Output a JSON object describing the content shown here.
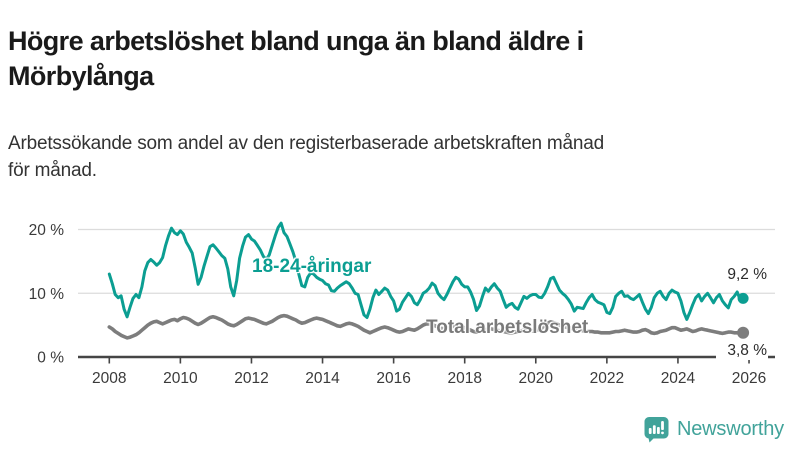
{
  "header": {
    "title_lines": [
      "Högre arbetslöshet bland unga än bland äldre i",
      "Mörbylånga"
    ],
    "subtitle_lines": [
      "Arbetssökande som andel av den registerbaserade arbetskraften månad",
      "för månad."
    ]
  },
  "footer": {
    "brand": "Newsworthy"
  },
  "colors": {
    "accent_teal": "#0B9E92",
    "line_gray": "#7d7d7d",
    "label_gray": "#7a7a7a",
    "gridline": "#dcdcdc",
    "axis": "#454545",
    "tick_text": "#3a3a3a",
    "title_text": "#1a1a1a",
    "subtitle_text": "#333333",
    "logo_teal": "#41a39a"
  },
  "chart_data": {
    "type": "line",
    "title": "Högre arbetslöshet bland unga än bland äldre i Mörbylånga",
    "subtitle": "Arbetssökande som andel av den registerbaserade arbetskraften månad för månad.",
    "xlabel": "",
    "ylabel": "",
    "unit": "%",
    "frequency": "monthly",
    "x_start_year": 2008,
    "x_end": "2025-11",
    "ylim": [
      0,
      22
    ],
    "grid": "horizontal",
    "legend_position": "inline-labels",
    "yticks": [
      {
        "value": 0,
        "label": "0 %"
      },
      {
        "value": 10,
        "label": "10 %"
      },
      {
        "value": 20,
        "label": "20 %"
      }
    ],
    "xticks": [
      {
        "value": 2008,
        "label": "2008"
      },
      {
        "value": 2010,
        "label": "2010"
      },
      {
        "value": 2012,
        "label": "2012"
      },
      {
        "value": 2014,
        "label": "2014"
      },
      {
        "value": 2016,
        "label": "2016"
      },
      {
        "value": 2018,
        "label": "2018"
      },
      {
        "value": 2020,
        "label": "2020"
      },
      {
        "value": 2022,
        "label": "2022"
      },
      {
        "value": 2024,
        "label": "2024"
      },
      {
        "value": 2026,
        "label": "2026"
      }
    ],
    "series": [
      {
        "name": "18-24-åringar",
        "color": "#0B9E92",
        "end_label": "9,2 %",
        "end_value": 9.2,
        "values": [
          13.0,
          11.5,
          9.8,
          9.3,
          9.6,
          7.5,
          6.3,
          7.8,
          9.2,
          9.8,
          9.3,
          11.0,
          13.5,
          14.8,
          15.3,
          14.9,
          14.4,
          14.8,
          15.6,
          17.5,
          19.0,
          20.2,
          19.5,
          19.2,
          19.8,
          19.3,
          18.0,
          17.2,
          16.3,
          14.0,
          11.4,
          12.5,
          14.3,
          15.8,
          17.3,
          17.6,
          17.1,
          16.5,
          15.9,
          15.5,
          13.8,
          11.0,
          9.6,
          12.0,
          15.5,
          17.4,
          18.8,
          19.2,
          18.5,
          18.2,
          17.5,
          16.8,
          15.8,
          15.3,
          16.0,
          17.5,
          19.0,
          20.3,
          21.0,
          19.5,
          18.9,
          17.7,
          16.5,
          15.0,
          13.0,
          11.2,
          11.0,
          12.5,
          13.2,
          13.0,
          12.5,
          12.2,
          12.0,
          11.5,
          11.3,
          10.4,
          10.3,
          10.8,
          11.2,
          11.5,
          11.8,
          11.5,
          10.8,
          10.0,
          9.8,
          8.2,
          6.6,
          6.2,
          7.5,
          9.3,
          10.5,
          9.8,
          10.3,
          10.8,
          10.5,
          9.5,
          8.8,
          7.2,
          7.5,
          8.6,
          9.3,
          10.0,
          9.5,
          8.5,
          8.2,
          9.0,
          10.0,
          10.3,
          10.8,
          11.6,
          11.2,
          10.0,
          9.4,
          9.0,
          9.8,
          10.8,
          11.8,
          12.5,
          12.2,
          11.4,
          11.0,
          11.0,
          10.2,
          9.0,
          7.3,
          8.0,
          9.5,
          10.8,
          10.3,
          11.0,
          11.5,
          10.8,
          10.3,
          9.0,
          7.8,
          8.2,
          8.4,
          7.8,
          7.5,
          8.5,
          9.5,
          9.2,
          9.6,
          9.8,
          9.8,
          9.4,
          9.3,
          10.0,
          11.0,
          12.3,
          12.5,
          11.5,
          10.5,
          10.0,
          9.6,
          9.0,
          8.3,
          7.2,
          7.8,
          7.7,
          7.6,
          8.5,
          9.3,
          9.8,
          9.0,
          8.6,
          8.4,
          8.2,
          7.0,
          6.8,
          7.8,
          9.5,
          10.0,
          10.3,
          9.5,
          9.6,
          9.2,
          9.0,
          9.4,
          9.8,
          8.6,
          7.5,
          6.8,
          7.8,
          9.3,
          10.0,
          10.3,
          9.5,
          9.0,
          10.0,
          10.5,
          10.2,
          10.0,
          8.8,
          7.0,
          5.9,
          7.0,
          8.2,
          9.3,
          9.8,
          8.8,
          9.5,
          10.0,
          9.3,
          8.5,
          9.3,
          9.8,
          8.8,
          8.2,
          7.7,
          9.0,
          9.5,
          10.2,
          9.0,
          9.2
        ]
      },
      {
        "name": "Total arbetslöshet",
        "color": "#7d7d7d",
        "end_label": "3,8 %",
        "end_value": 3.8,
        "values": [
          4.7,
          4.4,
          4.0,
          3.7,
          3.4,
          3.2,
          3.0,
          3.1,
          3.3,
          3.5,
          3.8,
          4.2,
          4.6,
          5.0,
          5.3,
          5.5,
          5.6,
          5.4,
          5.2,
          5.4,
          5.6,
          5.8,
          5.9,
          5.7,
          6.0,
          6.2,
          6.1,
          5.9,
          5.6,
          5.3,
          5.1,
          5.3,
          5.6,
          5.9,
          6.2,
          6.3,
          6.2,
          6.0,
          5.8,
          5.5,
          5.2,
          5.0,
          4.9,
          5.1,
          5.4,
          5.7,
          6.0,
          6.1,
          6.0,
          5.9,
          5.7,
          5.5,
          5.3,
          5.2,
          5.4,
          5.6,
          5.9,
          6.2,
          6.4,
          6.5,
          6.4,
          6.2,
          6.0,
          5.8,
          5.5,
          5.3,
          5.4,
          5.6,
          5.8,
          6.0,
          6.1,
          6.0,
          5.9,
          5.7,
          5.5,
          5.3,
          5.1,
          4.9,
          4.8,
          5.0,
          5.2,
          5.3,
          5.2,
          5.0,
          4.8,
          4.5,
          4.2,
          4.0,
          3.8,
          4.0,
          4.2,
          4.4,
          4.6,
          4.7,
          4.6,
          4.4,
          4.2,
          4.0,
          3.9,
          4.0,
          4.2,
          4.4,
          4.3,
          4.2,
          4.4,
          4.7,
          5.0,
          5.2,
          5.2,
          5.1,
          4.9,
          4.7,
          4.5,
          4.4,
          4.5,
          4.7,
          4.8,
          4.9,
          4.8,
          4.7,
          4.6,
          4.4,
          4.2,
          4.0,
          3.9,
          4.0,
          4.2,
          4.3,
          4.4,
          4.4,
          4.3,
          4.2,
          4.1,
          4.0,
          3.9,
          3.8,
          3.8,
          3.9,
          4.0,
          4.1,
          4.2,
          4.2,
          4.1,
          4.1,
          4.2,
          4.3,
          4.5,
          5.0,
          5.3,
          5.5,
          5.4,
          5.2,
          5.0,
          4.8,
          4.7,
          4.6,
          4.5,
          4.4,
          4.3,
          4.2,
          4.1,
          4.0,
          4.0,
          4.0,
          3.9,
          3.9,
          3.8,
          3.8,
          3.8,
          3.8,
          3.9,
          4.0,
          4.0,
          4.1,
          4.2,
          4.1,
          4.0,
          3.9,
          3.9,
          4.0,
          4.2,
          4.3,
          4.1,
          3.8,
          3.7,
          3.8,
          4.0,
          4.1,
          4.2,
          4.4,
          4.6,
          4.6,
          4.4,
          4.2,
          4.3,
          4.4,
          4.2,
          4.0,
          4.1,
          4.3,
          4.4,
          4.3,
          4.2,
          4.1,
          4.0,
          3.9,
          3.8,
          3.7,
          3.8,
          3.9,
          3.9,
          3.8,
          3.8,
          3.8,
          3.8
        ]
      }
    ]
  }
}
